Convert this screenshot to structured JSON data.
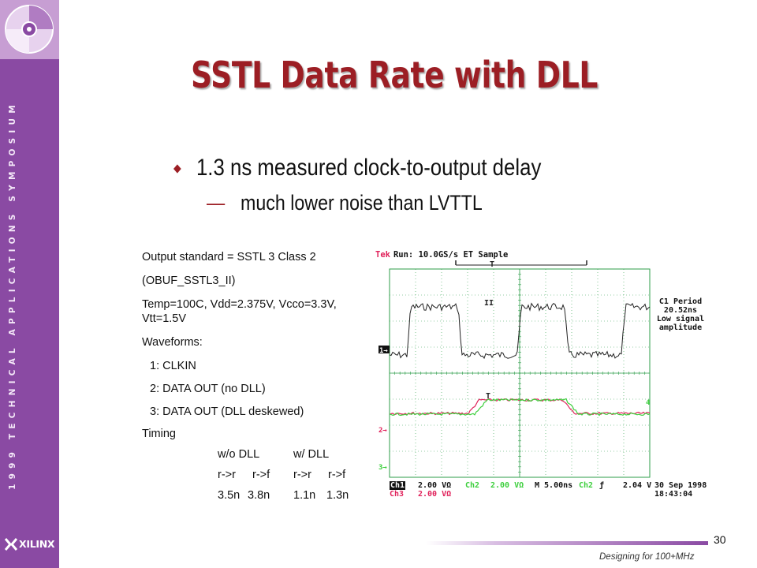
{
  "sidebar": {
    "event_text": "1999 TECHNICAL APPLICATIONS SYMPOSIUM",
    "logo_text": "XILINX",
    "colors": {
      "sidebar": "#8a4aa3",
      "cd_box": "#c79ed3"
    }
  },
  "slide": {
    "title": "SSTL Data Rate with DLL",
    "bullet_main": "1.3 ns measured clock-to-output delay",
    "bullet_sub_marker": "—",
    "bullet_sub": "much lower noise than LVTTL",
    "accent_color": "#9c1e24"
  },
  "info": {
    "line1": "Output standard = SSTL 3 Class 2",
    "line2": "(OBUF_SSTL3_II)",
    "line3a": "Temp=100C, Vdd=2.375V, Vcco=3.3V,",
    "line3b": "Vtt=1.5V",
    "waveforms_label": "Waveforms:",
    "wave1": "1: CLKIN",
    "wave2": "2: DATA OUT (no DLL)",
    "wave3": "3: DATA OUT (DLL deskewed)",
    "timing_label": "Timing",
    "timing": {
      "header_no_dll": "w/o DLL",
      "header_dll": "w/ DLL",
      "rr1": "r->r",
      "rf1": "r->f",
      "rr2": "r->r",
      "rf2": "r->f",
      "v_rr1": "3.5n",
      "v_rf1": "3.8n",
      "v_rr2": "1.1n",
      "v_rf2": "1.3n"
    }
  },
  "scope": {
    "brand": "Tek",
    "status": "Run: 10.0GS/s ET Sample",
    "trigger_marker": "T",
    "ch1_marker": "1→",
    "ch2_marker": "2→",
    "ch3_marker": "3→",
    "ch4_marker": "4",
    "measure_label": "C1 Period",
    "measure_value": "20.52ns",
    "measure_note1": "Low signal",
    "measure_note2": "amplitude",
    "footer": {
      "ch1": "Ch1",
      "ch1_scale": "2.00 VΩ",
      "ch2": "Ch2",
      "ch2_scale": "2.00 VΩ",
      "timebase": "M 5.00ns",
      "trig_ch": "Ch2",
      "trig_symbol": "ƒ",
      "trig_level": "2.04 V",
      "ch3": "Ch3",
      "ch3_scale": "2.00 VΩ",
      "date": "30 Sep 1998",
      "time": "18:43:04"
    },
    "colors": {
      "grid": "#2e9e4a",
      "ch1": "#222222",
      "ch2": "#e0215a",
      "ch3": "#3ecf3e"
    }
  },
  "footer": {
    "page_number": "30",
    "caption": "Designing for 100+MHz"
  }
}
